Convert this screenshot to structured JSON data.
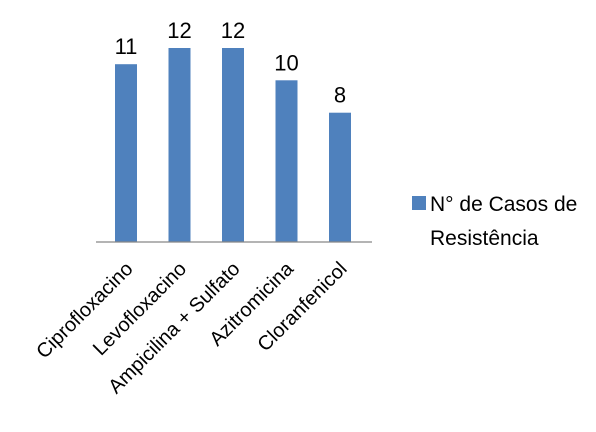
{
  "chart_data": {
    "type": "bar",
    "categories": [
      "Ciprofloxacino",
      "Levofloxacino",
      "Ampicilina + Sulfato",
      "Azitromicina",
      "Cloranfenicol"
    ],
    "series": [
      {
        "name": "N° de Casos de Resistência",
        "values": [
          11,
          12,
          12,
          10,
          8
        ],
        "color": "#4f81bd"
      }
    ],
    "ylim": [
      0,
      12
    ],
    "grid": false,
    "legend_position": "right",
    "legend_lines": [
      "N° de Casos de",
      "Resistência"
    ],
    "axis_color": "#868686"
  }
}
